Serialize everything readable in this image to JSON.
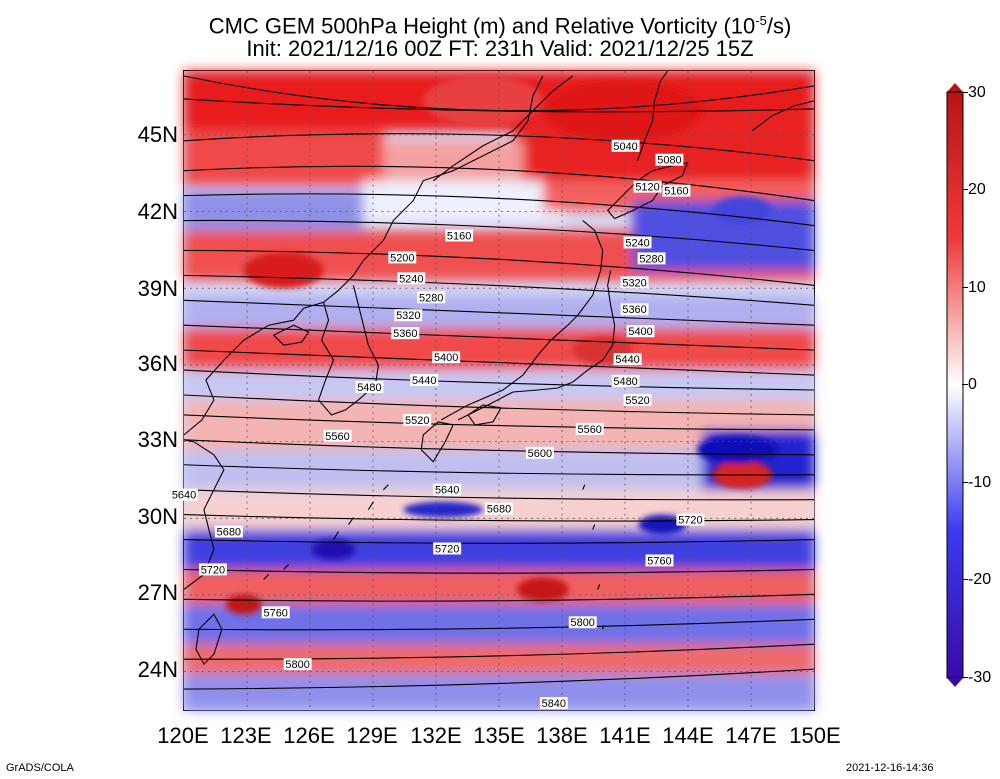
{
  "title": {
    "line1_main": "CMC GEM 500hPa Height (m) and Relative Vorticity (10",
    "line1_sup": "-5",
    "line1_end": "/s)",
    "line2": "Init: 2021/12/16 00Z  FT: 231h  Valid: 2021/12/25 15Z"
  },
  "axes": {
    "y_ticks": [
      "45N",
      "42N",
      "39N",
      "36N",
      "33N",
      "30N",
      "27N",
      "24N"
    ],
    "x_ticks": [
      "120E",
      "123E",
      "126E",
      "129E",
      "132E",
      "135E",
      "138E",
      "141E",
      "144E",
      "147E",
      "150E"
    ],
    "lon_range": [
      120,
      150
    ],
    "lat_range": [
      22.5,
      47.5
    ]
  },
  "colorbar": {
    "labels": [
      "30",
      "20",
      "10",
      "0",
      "-10",
      "-20",
      "-30"
    ],
    "range": [
      -30,
      30
    ],
    "colors": {
      "max": "#b81414",
      "pos": "#f03a3a",
      "zero": "#ffffff",
      "neg": "#3a3af0",
      "min": "#3a0aa8"
    }
  },
  "contours": [
    {
      "label": "5040"
    },
    {
      "label": "5080"
    },
    {
      "label": "5120"
    },
    {
      "label": "5160"
    },
    {
      "label": "5160"
    },
    {
      "label": "5200"
    },
    {
      "label": "5240"
    },
    {
      "label": "5240"
    },
    {
      "label": "5280"
    },
    {
      "label": "5280"
    },
    {
      "label": "5320"
    },
    {
      "label": "5320"
    },
    {
      "label": "5360"
    },
    {
      "label": "5360"
    },
    {
      "label": "5400"
    },
    {
      "label": "5400"
    },
    {
      "label": "5440"
    },
    {
      "label": "5440"
    },
    {
      "label": "5480"
    },
    {
      "label": "5480"
    },
    {
      "label": "5520"
    },
    {
      "label": "5520"
    },
    {
      "label": "5560"
    },
    {
      "label": "5560"
    },
    {
      "label": "5600"
    },
    {
      "label": "5640"
    },
    {
      "label": "5640"
    },
    {
      "label": "5680"
    },
    {
      "label": "5680"
    },
    {
      "label": "5720"
    },
    {
      "label": "5720"
    },
    {
      "label": "5720"
    },
    {
      "label": "5760"
    },
    {
      "label": "5760"
    },
    {
      "label": "5800"
    },
    {
      "label": "5800"
    },
    {
      "label": "5840"
    }
  ],
  "footer": {
    "left": "GrADS/COLA",
    "right": "2021-12-16-14:36"
  }
}
